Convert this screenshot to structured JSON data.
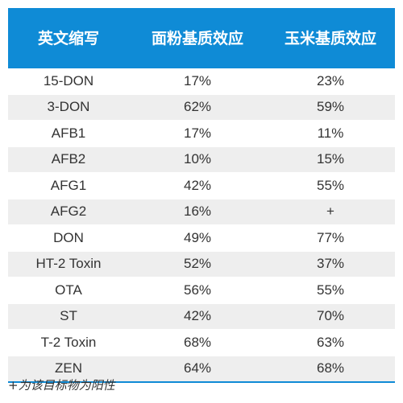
{
  "table": {
    "headers": [
      "英文缩写",
      "面粉基质效应",
      "玉米基质效应"
    ],
    "rows": [
      [
        "15-DON",
        "17%",
        "23%"
      ],
      [
        "3-DON",
        "62%",
        "59%"
      ],
      [
        "AFB1",
        "17%",
        "11%"
      ],
      [
        "AFB2",
        "10%",
        "15%"
      ],
      [
        "AFG1",
        "42%",
        "55%"
      ],
      [
        "AFG2",
        "16%",
        "+"
      ],
      [
        "DON",
        "49%",
        "77%"
      ],
      [
        "HT-2 Toxin",
        "52%",
        "37%"
      ],
      [
        "OTA",
        "56%",
        "55%"
      ],
      [
        "ST",
        "42%",
        "70%"
      ],
      [
        "T-2 Toxin",
        "68%",
        "63%"
      ],
      [
        "ZEN",
        "64%",
        "68%"
      ]
    ]
  },
  "footnote": "+为该目标物为阳性",
  "colors": {
    "header_bg": "#0f8bd6",
    "row_alt_bg": "#eeeeee"
  }
}
